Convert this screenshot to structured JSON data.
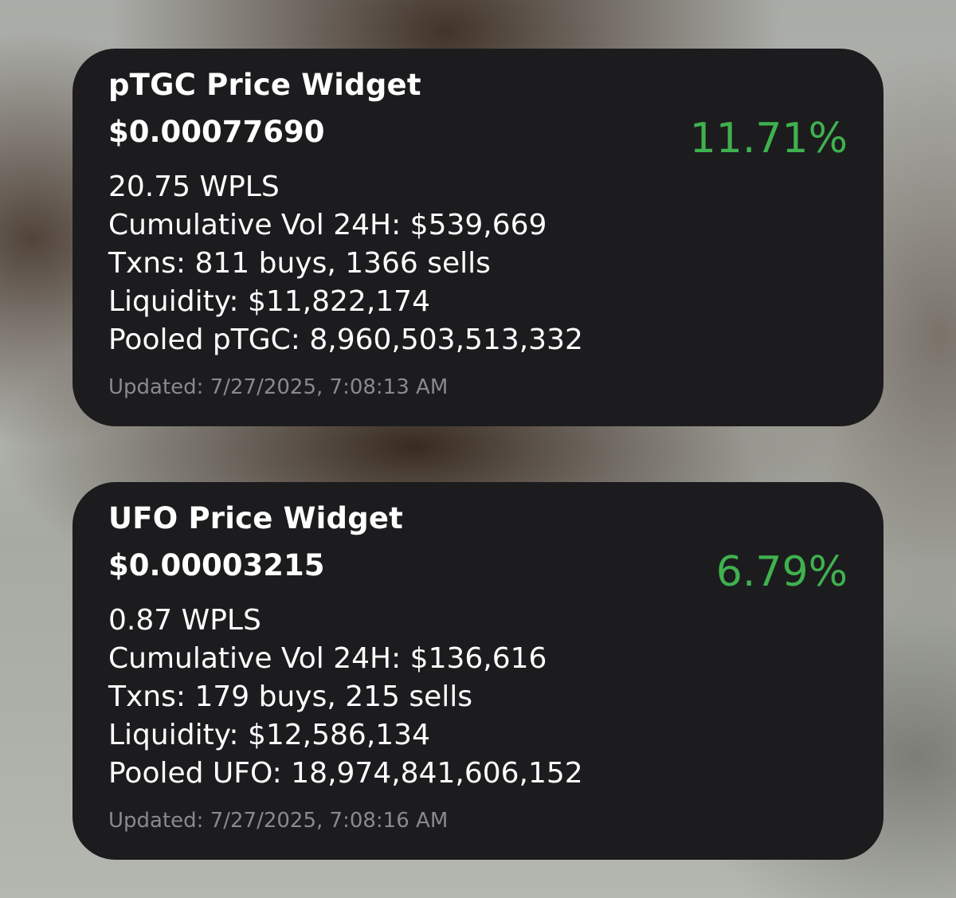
{
  "widgets": [
    {
      "title": "pTGC Price Widget",
      "price": "$0.00077690",
      "change": "11.71%",
      "stats": [
        "20.75 WPLS",
        "Cumulative Vol 24H: $539,669",
        "Txns: 811 buys, 1366 sells",
        "Liquidity: $11,822,174",
        "Pooled pTGC: 8,960,503,513,332"
      ],
      "updated": "Updated: 7/27/2025, 7:08:13 AM"
    },
    {
      "title": "UFO Price Widget",
      "price": "$0.00003215",
      "change": "6.79%",
      "stats": [
        "0.87 WPLS",
        "Cumulative Vol 24H: $136,616",
        "Txns: 179 buys, 215 sells",
        "Liquidity: $12,586,134",
        "Pooled UFO: 18,974,841,606,152"
      ],
      "updated": "Updated: 7/27/2025, 7:08:16 AM"
    }
  ],
  "colors": {
    "widget_background": "#1c1c1e",
    "positive_change": "#3fb14f",
    "text_primary": "#ffffff",
    "text_secondary": "#8a8a8e"
  }
}
